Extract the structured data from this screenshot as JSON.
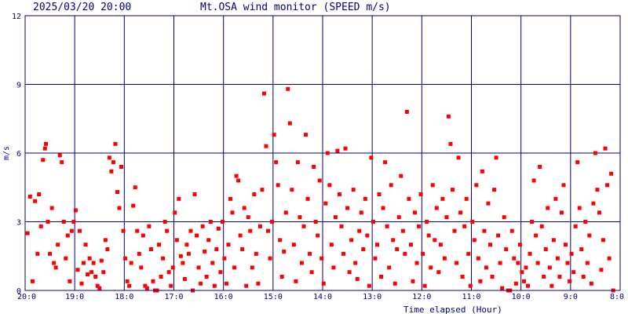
{
  "header": {
    "timestamp": "2025/03/20 20:00",
    "title": "Mt.OSA wind monitor (SPEED m/s)"
  },
  "chart_data": {
    "type": "scatter",
    "title": "Mt.OSA wind monitor (SPEED m/s)",
    "timestamp": "2025/03/20 20:00",
    "xlabel": "Time elapsed (Hour)",
    "ylabel": "m/s",
    "xlim": [
      20,
      8
    ],
    "ylim": [
      0,
      12
    ],
    "x_ticks": [
      20,
      19,
      18,
      17,
      16,
      15,
      14,
      13,
      12,
      11,
      10,
      9,
      8
    ],
    "x_tick_labels": [
      "20:0",
      "19:0",
      "18:0",
      "17:0",
      "16:0",
      "15:0",
      "14:0",
      "13:0",
      "12:0",
      "11:0",
      "10:0",
      "9:0",
      "8:0"
    ],
    "y_ticks": [
      0,
      3,
      6,
      9,
      12
    ],
    "y_tick_labels": [
      "0",
      "3",
      "6",
      "9",
      "12"
    ],
    "grid": true,
    "colors": {
      "frame": "#000080",
      "points": "#ff0000",
      "text": "#000080"
    },
    "series": [
      {
        "points": [
          [
            19.95,
            2.5
          ],
          [
            19.9,
            4.1
          ],
          [
            19.85,
            0.4
          ],
          [
            19.8,
            3.9
          ],
          [
            19.75,
            1.6
          ],
          [
            19.72,
            4.2
          ],
          [
            19.68,
            2.8
          ],
          [
            19.64,
            5.7
          ],
          [
            19.6,
            6.2
          ],
          [
            19.58,
            6.4
          ],
          [
            19.54,
            3.0
          ],
          [
            19.5,
            1.6
          ],
          [
            19.46,
            3.6
          ],
          [
            19.42,
            1.2
          ],
          [
            19.38,
            1.0
          ],
          [
            19.34,
            2.0
          ],
          [
            19.3,
            5.9
          ],
          [
            19.26,
            5.6
          ],
          [
            19.22,
            3.0
          ],
          [
            19.18,
            1.4
          ],
          [
            19.14,
            2.4
          ],
          [
            19.1,
            0.4
          ],
          [
            19.06,
            2.6
          ],
          [
            19.02,
            3.0
          ],
          [
            18.98,
            3.5
          ],
          [
            18.94,
            0.9
          ],
          [
            18.9,
            2.6
          ],
          [
            18.86,
            0.3
          ],
          [
            18.82,
            1.2
          ],
          [
            18.78,
            2.0
          ],
          [
            18.74,
            0.7
          ],
          [
            18.7,
            1.4
          ],
          [
            18.66,
            0.8
          ],
          [
            18.62,
            1.2
          ],
          [
            18.58,
            0.6
          ],
          [
            18.54,
            0.2
          ],
          [
            18.5,
            0.1
          ],
          [
            18.46,
            1.3
          ],
          [
            18.42,
            0.8
          ],
          [
            18.38,
            2.2
          ],
          [
            18.34,
            1.8
          ],
          [
            18.3,
            5.8
          ],
          [
            18.26,
            5.2
          ],
          [
            18.22,
            5.6
          ],
          [
            18.18,
            6.4
          ],
          [
            18.14,
            4.3
          ],
          [
            18.1,
            3.6
          ],
          [
            18.06,
            5.4
          ],
          [
            18.02,
            2.6
          ],
          [
            17.98,
            1.4
          ],
          [
            17.94,
            0.4
          ],
          [
            17.9,
            0.2
          ],
          [
            17.86,
            1.2
          ],
          [
            17.82,
            3.7
          ],
          [
            17.78,
            4.5
          ],
          [
            17.74,
            2.6
          ],
          [
            17.7,
            1.6
          ],
          [
            17.66,
            1.0
          ],
          [
            17.62,
            2.4
          ],
          [
            17.58,
            0.2
          ],
          [
            17.54,
            0.1
          ],
          [
            17.5,
            2.8
          ],
          [
            17.46,
            1.8
          ],
          [
            17.42,
            0.4
          ],
          [
            17.38,
            0.0
          ],
          [
            17.34,
            0.0
          ],
          [
            17.3,
            2.0
          ],
          [
            17.26,
            0.6
          ],
          [
            17.22,
            1.4
          ],
          [
            17.18,
            3.0
          ],
          [
            17.14,
            2.6
          ],
          [
            17.1,
            0.8
          ],
          [
            17.06,
            0.2
          ],
          [
            17.02,
            1.0
          ],
          [
            16.98,
            3.4
          ],
          [
            16.94,
            2.2
          ],
          [
            16.9,
            4.0
          ],
          [
            16.86,
            1.5
          ],
          [
            16.82,
            1.2
          ],
          [
            16.78,
            0.5
          ],
          [
            16.74,
            2.0
          ],
          [
            16.7,
            1.6
          ],
          [
            16.66,
            2.6
          ],
          [
            16.62,
            0.0
          ],
          [
            16.58,
            4.2
          ],
          [
            16.54,
            2.4
          ],
          [
            16.5,
            1.0
          ],
          [
            16.46,
            0.3
          ],
          [
            16.42,
            2.8
          ],
          [
            16.38,
            1.7
          ],
          [
            16.34,
            0.6
          ],
          [
            16.3,
            2.2
          ],
          [
            16.26,
            3.0
          ],
          [
            16.22,
            1.2
          ],
          [
            16.18,
            0.2
          ],
          [
            16.14,
            1.8
          ],
          [
            16.1,
            2.7
          ],
          [
            16.06,
            0.8
          ],
          [
            16.02,
            3.0
          ],
          [
            15.98,
            1.4
          ],
          [
            15.94,
            0.3
          ],
          [
            15.9,
            2.0
          ],
          [
            15.86,
            4.0
          ],
          [
            15.82,
            3.4
          ],
          [
            15.78,
            1.0
          ],
          [
            15.74,
            5.0
          ],
          [
            15.7,
            4.8
          ],
          [
            15.66,
            2.4
          ],
          [
            15.62,
            1.8
          ],
          [
            15.58,
            3.6
          ],
          [
            15.54,
            0.2
          ],
          [
            15.5,
            3.2
          ],
          [
            15.46,
            2.6
          ],
          [
            15.42,
            1.0
          ],
          [
            15.38,
            4.2
          ],
          [
            15.34,
            1.6
          ],
          [
            15.3,
            0.3
          ],
          [
            15.26,
            2.8
          ],
          [
            15.22,
            4.4
          ],
          [
            15.18,
            8.6
          ],
          [
            15.14,
            6.3
          ],
          [
            15.1,
            2.6
          ],
          [
            15.06,
            1.4
          ],
          [
            15.02,
            3.0
          ],
          [
            14.98,
            6.8
          ],
          [
            14.94,
            5.6
          ],
          [
            14.9,
            4.6
          ],
          [
            14.86,
            2.2
          ],
          [
            14.82,
            0.6
          ],
          [
            14.78,
            1.7
          ],
          [
            14.74,
            3.4
          ],
          [
            14.7,
            8.8
          ],
          [
            14.66,
            7.3
          ],
          [
            14.62,
            4.4
          ],
          [
            14.58,
            2.0
          ],
          [
            14.54,
            0.4
          ],
          [
            14.5,
            5.6
          ],
          [
            14.46,
            3.2
          ],
          [
            14.42,
            1.2
          ],
          [
            14.38,
            2.8
          ],
          [
            14.34,
            6.8
          ],
          [
            14.3,
            4.0
          ],
          [
            14.26,
            1.6
          ],
          [
            14.22,
            0.8
          ],
          [
            14.18,
            5.4
          ],
          [
            14.14,
            3.0
          ],
          [
            14.1,
            2.4
          ],
          [
            14.06,
            4.8
          ],
          [
            14.02,
            1.4
          ],
          [
            13.98,
            0.3
          ],
          [
            13.94,
            3.8
          ],
          [
            13.9,
            6.0
          ],
          [
            13.86,
            4.6
          ],
          [
            13.82,
            2.0
          ],
          [
            13.78,
            1.0
          ],
          [
            13.74,
            3.2
          ],
          [
            13.7,
            6.1
          ],
          [
            13.66,
            4.2
          ],
          [
            13.62,
            2.8
          ],
          [
            13.58,
            1.6
          ],
          [
            13.54,
            6.2
          ],
          [
            13.5,
            3.6
          ],
          [
            13.46,
            0.8
          ],
          [
            13.42,
            2.2
          ],
          [
            13.38,
            4.4
          ],
          [
            13.34,
            1.2
          ],
          [
            13.3,
            0.5
          ],
          [
            13.26,
            2.6
          ],
          [
            13.22,
            3.4
          ],
          [
            13.18,
            1.8
          ],
          [
            13.14,
            4.0
          ],
          [
            13.1,
            2.4
          ],
          [
            13.06,
            0.2
          ],
          [
            13.02,
            5.8
          ],
          [
            12.98,
            3.0
          ],
          [
            12.94,
            1.4
          ],
          [
            12.9,
            2.0
          ],
          [
            12.86,
            4.2
          ],
          [
            12.82,
            0.6
          ],
          [
            12.78,
            3.6
          ],
          [
            12.74,
            5.6
          ],
          [
            12.7,
            2.8
          ],
          [
            12.66,
            1.0
          ],
          [
            12.62,
            4.6
          ],
          [
            12.58,
            2.2
          ],
          [
            12.54,
            0.3
          ],
          [
            12.5,
            1.8
          ],
          [
            12.46,
            3.2
          ],
          [
            12.42,
            5.0
          ],
          [
            12.38,
            2.6
          ],
          [
            12.34,
            1.6
          ],
          [
            12.3,
            7.8
          ],
          [
            12.26,
            4.0
          ],
          [
            12.22,
            2.0
          ],
          [
            12.18,
            0.4
          ],
          [
            12.14,
            3.4
          ],
          [
            12.1,
            1.2
          ],
          [
            12.06,
            2.8
          ],
          [
            12.02,
            4.2
          ],
          [
            11.98,
            1.6
          ],
          [
            11.94,
            0.2
          ],
          [
            11.9,
            3.0
          ],
          [
            11.86,
            2.4
          ],
          [
            11.82,
            1.0
          ],
          [
            11.78,
            4.6
          ],
          [
            11.74,
            2.2
          ],
          [
            11.7,
            3.6
          ],
          [
            11.66,
            0.8
          ],
          [
            11.62,
            2.0
          ],
          [
            11.58,
            4.0
          ],
          [
            11.54,
            1.4
          ],
          [
            11.5,
            3.2
          ],
          [
            11.46,
            7.6
          ],
          [
            11.42,
            6.4
          ],
          [
            11.38,
            4.4
          ],
          [
            11.34,
            2.6
          ],
          [
            11.3,
            1.2
          ],
          [
            11.26,
            5.8
          ],
          [
            11.22,
            3.4
          ],
          [
            11.18,
            0.6
          ],
          [
            11.14,
            2.8
          ],
          [
            11.1,
            4.0
          ],
          [
            11.06,
            1.6
          ],
          [
            11.02,
            0.2
          ],
          [
            10.98,
            3.0
          ],
          [
            10.94,
            2.2
          ],
          [
            10.9,
            4.6
          ],
          [
            10.86,
            1.4
          ],
          [
            10.82,
            0.4
          ],
          [
            10.78,
            5.2
          ],
          [
            10.74,
            2.6
          ],
          [
            10.7,
            1.0
          ],
          [
            10.66,
            3.8
          ],
          [
            10.62,
            2.0
          ],
          [
            10.58,
            0.6
          ],
          [
            10.54,
            4.4
          ],
          [
            10.5,
            5.8
          ],
          [
            10.46,
            2.4
          ],
          [
            10.42,
            1.2
          ],
          [
            10.38,
            0.1
          ],
          [
            10.34,
            3.2
          ],
          [
            10.3,
            1.8
          ],
          [
            10.26,
            0.0
          ],
          [
            10.22,
            0.0
          ],
          [
            10.18,
            2.6
          ],
          [
            10.14,
            1.4
          ],
          [
            10.1,
            0.3
          ],
          [
            10.06,
            1.2
          ],
          [
            10.02,
            2.0
          ],
          [
            9.98,
            0.8
          ],
          [
            9.94,
            0.4
          ],
          [
            9.9,
            1.0
          ],
          [
            9.86,
            0.2
          ],
          [
            9.82,
            1.6
          ],
          [
            9.78,
            3.0
          ],
          [
            9.74,
            4.8
          ],
          [
            9.7,
            2.4
          ],
          [
            9.66,
            1.2
          ],
          [
            9.62,
            5.4
          ],
          [
            9.58,
            2.8
          ],
          [
            9.54,
            0.6
          ],
          [
            9.5,
            1.8
          ],
          [
            9.46,
            3.6
          ],
          [
            9.42,
            1.0
          ],
          [
            9.38,
            0.2
          ],
          [
            9.34,
            2.2
          ],
          [
            9.3,
            4.0
          ],
          [
            9.26,
            1.4
          ],
          [
            9.22,
            0.6
          ],
          [
            9.18,
            3.4
          ],
          [
            9.14,
            4.6
          ],
          [
            9.1,
            2.0
          ],
          [
            9.06,
            1.2
          ],
          [
            9.02,
            0.4
          ],
          [
            8.98,
            1.6
          ],
          [
            8.94,
            0.8
          ],
          [
            8.9,
            2.8
          ],
          [
            8.86,
            5.6
          ],
          [
            8.82,
            3.6
          ],
          [
            8.78,
            1.8
          ],
          [
            8.74,
            0.6
          ],
          [
            8.7,
            3.0
          ],
          [
            8.66,
            1.2
          ],
          [
            8.62,
            2.4
          ],
          [
            8.58,
            0.3
          ],
          [
            8.54,
            3.8
          ],
          [
            8.5,
            6.0
          ],
          [
            8.46,
            4.4
          ],
          [
            8.42,
            3.4
          ],
          [
            8.38,
            0.9
          ],
          [
            8.34,
            2.2
          ],
          [
            8.3,
            6.2
          ],
          [
            8.26,
            4.6
          ],
          [
            8.22,
            1.4
          ],
          [
            8.18,
            5.1
          ],
          [
            8.14,
            0.0
          ]
        ]
      }
    ]
  }
}
